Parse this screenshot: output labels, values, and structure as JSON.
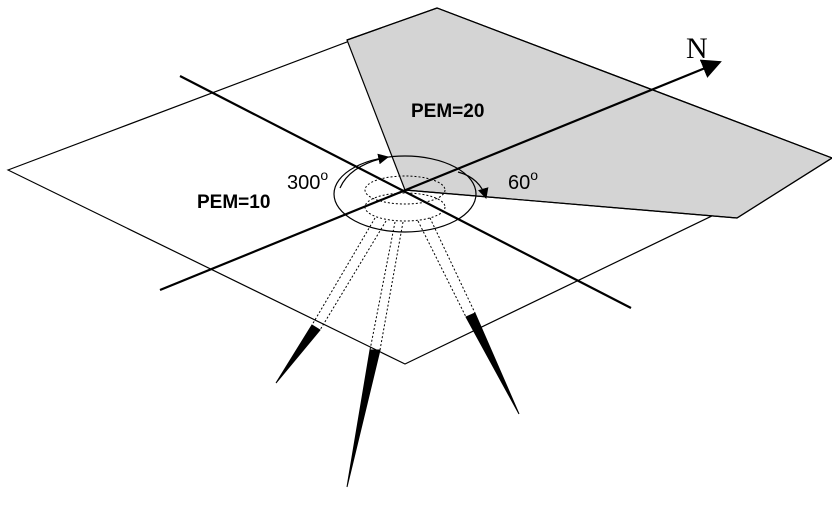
{
  "diagram": {
    "north_label": "N",
    "sector_high_label": "PEM=20",
    "sector_low_label": "PEM=10",
    "angle_start": {
      "value": "300",
      "superscript": "o"
    },
    "angle_end": {
      "value": "60",
      "superscript": "o"
    },
    "colors": {
      "line": "#000000",
      "sector_fill": "#d4d4d4",
      "background": "#ffffff"
    }
  }
}
